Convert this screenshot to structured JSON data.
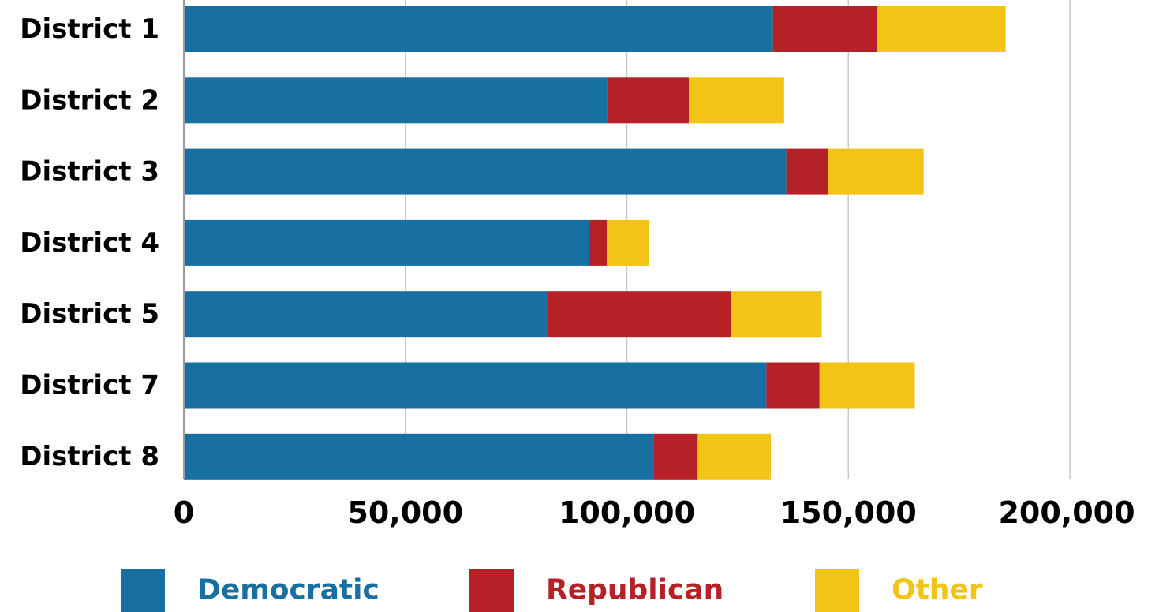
{
  "chart_data": {
    "type": "bar",
    "orientation": "horizontal",
    "stacked": true,
    "categories": [
      "District 1",
      "District 2",
      "District 3",
      "District 4",
      "District 5",
      "District 7",
      "District 8"
    ],
    "series": [
      {
        "name": "Democratic",
        "color": "#1770a1",
        "values": [
          133000,
          95500,
          136000,
          91500,
          82000,
          131500,
          106000
        ]
      },
      {
        "name": "Republican",
        "color": "#b52126",
        "values": [
          23500,
          18500,
          9500,
          4000,
          41500,
          12000,
          10000
        ]
      },
      {
        "name": "Other",
        "color": "#f2c415",
        "values": [
          29000,
          21500,
          21500,
          9500,
          20500,
          21500,
          16500
        ]
      }
    ],
    "xlim": [
      0,
      200000
    ],
    "ticks": [
      {
        "value": 0,
        "label": "0"
      },
      {
        "value": 50000,
        "label": "50,000"
      },
      {
        "value": 100000,
        "label": "100,000"
      },
      {
        "value": 150000,
        "label": "150,000"
      },
      {
        "value": 200000,
        "label": "200,000"
      }
    ],
    "grid": true,
    "legend_position": "bottom",
    "title": "",
    "xlabel": "",
    "ylabel": ""
  }
}
